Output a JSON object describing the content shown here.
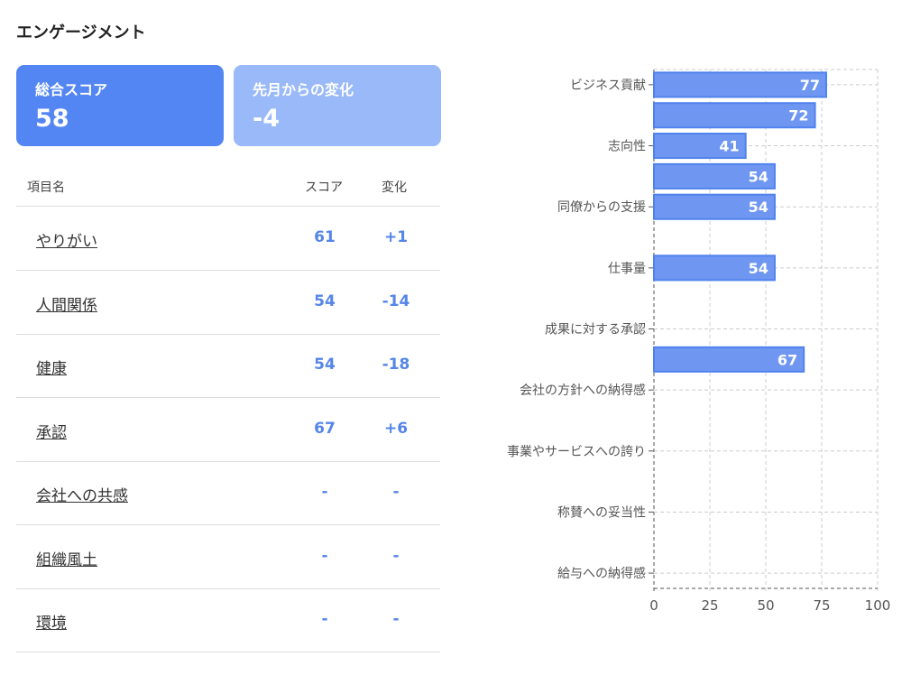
{
  "title": "エンゲージメント",
  "cards": [
    {
      "label": "総合スコア",
      "value": "58"
    },
    {
      "label": "先月からの変化",
      "value": "-4"
    }
  ],
  "table": {
    "headers": [
      "項目名",
      "スコア",
      "変化"
    ],
    "rows": [
      {
        "name": "やりがい",
        "score": "61",
        "change": "+1"
      },
      {
        "name": "人間関係",
        "score": "54",
        "change": "-14"
      },
      {
        "name": "健康",
        "score": "54",
        "change": "-18"
      },
      {
        "name": "承認",
        "score": "67",
        "change": "+6"
      },
      {
        "name": "会社への共感",
        "score": "-",
        "change": "-"
      },
      {
        "name": "組織風土",
        "score": "-",
        "change": "-"
      },
      {
        "name": "環境",
        "score": "-",
        "change": "-"
      }
    ]
  },
  "colors": {
    "primary": "#5486f3",
    "light": "#9ab9f8",
    "bar": "#6f97f2",
    "bar_border": "#5082ee"
  },
  "chart_data": {
    "type": "bar",
    "orientation": "horizontal",
    "categories": [
      "ビジネス貢献",
      "",
      "志向性",
      "",
      "同僚からの支援",
      "",
      "仕事量",
      "",
      "成果に対する承認",
      "",
      "会社の方針への納得感",
      "",
      "事業やサービスへの誇り",
      "",
      "称賛への妥当性",
      "",
      "給与への納得感"
    ],
    "values": [
      77,
      72,
      41,
      54,
      54,
      null,
      54,
      null,
      null,
      67,
      null,
      null,
      null,
      null,
      null,
      null,
      null
    ],
    "xlim": [
      0,
      100
    ],
    "xticks": [
      0,
      25,
      50,
      75,
      100
    ],
    "grid": true,
    "data_labels": true
  }
}
